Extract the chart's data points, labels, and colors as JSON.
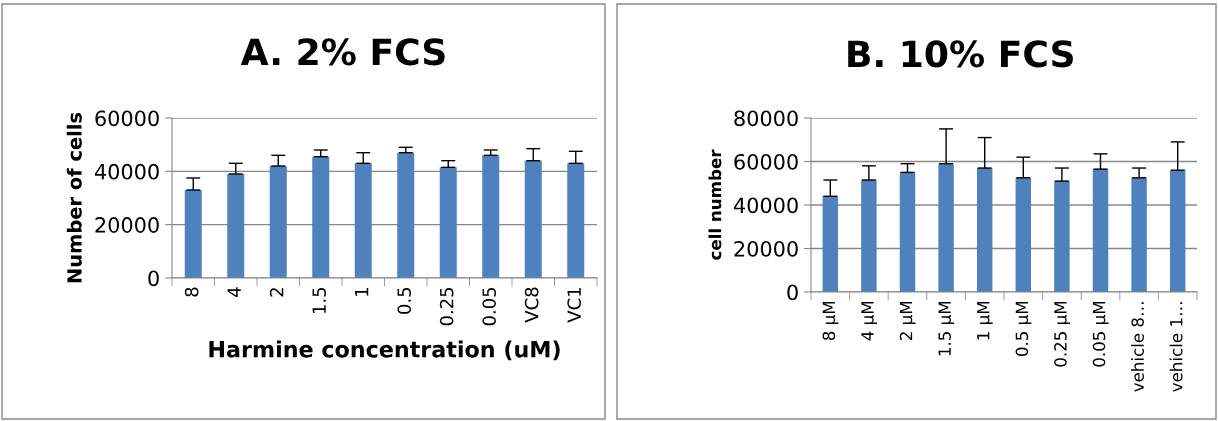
{
  "chart_data": [
    {
      "type": "bar",
      "title": "A. 2% FCS",
      "xlabel": "Harmine concentration (uM)",
      "ylabel": "Number of cells",
      "categories": [
        "8",
        "4",
        "2",
        "1.5",
        "1",
        "0.5",
        "0.25",
        "0.05",
        "VC8",
        "VC1"
      ],
      "series": [
        {
          "color": "#4f81bd",
          "values": [
            33000,
            39000,
            42000,
            45500,
            43000,
            47000,
            41500,
            46000,
            44000,
            43000
          ],
          "errors": [
            [
              33000,
              37500
            ],
            [
              39000,
              43000
            ],
            [
              42000,
              46000
            ],
            [
              45500,
              48000
            ],
            [
              43000,
              47000
            ],
            [
              47000,
              49000
            ],
            [
              41500,
              44000
            ],
            [
              46000,
              48000
            ],
            [
              44000,
              48500
            ],
            [
              43000,
              47500
            ]
          ]
        }
      ],
      "ylim": [
        0,
        60000
      ],
      "yticks": [
        0,
        20000,
        40000,
        60000
      ],
      "grid": "y",
      "legend": false
    },
    {
      "type": "bar",
      "title": "B. 10% FCS",
      "ylabel": "cell number",
      "categories": [
        "8 µM",
        "4 µM",
        "2 µM",
        "1.5 µM",
        "1 µM",
        "0.5 µM",
        "0.25 µM",
        "0.05 µM",
        "vehicle 8…",
        "vehicle 1…"
      ],
      "series": [
        {
          "color": "#4f81bd",
          "values": [
            44000,
            51500,
            55000,
            59000,
            57000,
            52500,
            51000,
            56500,
            52500,
            56000
          ],
          "errors": [
            [
              44000,
              51500
            ],
            [
              51500,
              58000
            ],
            [
              55000,
              59000
            ],
            [
              59000,
              75000
            ],
            [
              57000,
              71000
            ],
            [
              52500,
              62000
            ],
            [
              51000,
              57000
            ],
            [
              56500,
              63500
            ],
            [
              52500,
              57000
            ],
            [
              56000,
              69000
            ]
          ]
        }
      ],
      "ylim": [
        0,
        80000
      ],
      "yticks": [
        0,
        20000,
        40000,
        60000,
        80000
      ],
      "grid": "y",
      "legend": false
    }
  ]
}
